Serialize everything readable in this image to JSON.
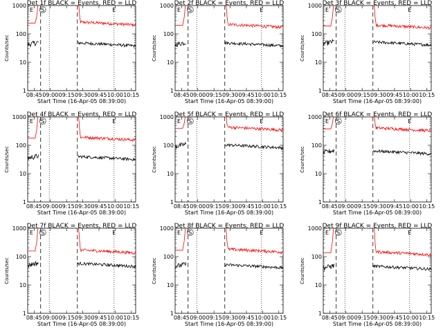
{
  "chart_data": [
    {
      "type": "line",
      "title": "Det 1f BLACK = Events, RED = LLD",
      "xlabel": "Start Time (16-Apr-05 08:39:00)",
      "ylabel": "Counts/sec",
      "yscale": "log",
      "ylim": [
        1,
        1000
      ],
      "xlim": [
        0,
        100
      ],
      "y_ticks": [
        "1",
        "10",
        "100",
        "1000"
      ],
      "x_ticks": [
        "08:45",
        "09:00",
        "09:15",
        "09:30",
        "09:45",
        "10:00",
        "10:15"
      ],
      "x_tick_values": [
        6,
        21,
        36,
        51,
        66,
        81,
        96
      ],
      "markers": {
        "S": 12,
        "E": 80
      },
      "dashed_lines": [
        12,
        46
      ],
      "dotted_lines": [
        20,
        80
      ],
      "series": [
        {
          "color": "#ff0000",
          "level": 230,
          "gap_start": 12,
          "gap_end": 46
        },
        {
          "color": "#000000",
          "level": 42,
          "gap_start": 12,
          "gap_end": 46
        }
      ]
    },
    {
      "type": "line",
      "title": "Det 2f BLACK = Events, RED = LLD",
      "xlabel": "Start Time (16-Apr-05 08:39:00)",
      "ylabel": "Counts/sec",
      "yscale": "log",
      "ylim": [
        1,
        1000
      ],
      "xlim": [
        0,
        100
      ],
      "y_ticks": [
        "1",
        "10",
        "100",
        "1000"
      ],
      "x_ticks": [
        "08:45",
        "09:00",
        "09:15",
        "09:30",
        "09:45",
        "10:00",
        "10:15"
      ],
      "x_tick_values": [
        6,
        21,
        36,
        51,
        66,
        81,
        96
      ],
      "markers": {
        "S": 12,
        "E": 80
      },
      "dashed_lines": [
        12,
        46
      ],
      "dotted_lines": [
        20,
        80
      ],
      "series": [
        {
          "color": "#ff0000",
          "level": 190,
          "gap_start": 12,
          "gap_end": 46
        },
        {
          "color": "#000000",
          "level": 42,
          "gap_start": 12,
          "gap_end": 46
        }
      ]
    },
    {
      "type": "line",
      "title": "Det 3f BLACK = Events, RED = LLD",
      "xlabel": "Start Time (16-Apr-05 08:39:00)",
      "ylabel": "Counts/sec",
      "yscale": "log",
      "ylim": [
        1,
        1000
      ],
      "xlim": [
        0,
        100
      ],
      "y_ticks": [
        "1",
        "10",
        "100",
        "1000"
      ],
      "x_ticks": [
        "08:45",
        "09:00",
        "09:15",
        "09:30",
        "09:45",
        "10:00",
        "10:15"
      ],
      "x_tick_values": [
        6,
        21,
        36,
        51,
        66,
        81,
        96
      ],
      "markers": {
        "S": 12,
        "E": 80
      },
      "dashed_lines": [
        12,
        46
      ],
      "dotted_lines": [
        20,
        80
      ],
      "series": [
        {
          "color": "#ff0000",
          "level": 180,
          "gap_start": 12,
          "gap_end": 46
        },
        {
          "color": "#000000",
          "level": 45,
          "gap_start": 12,
          "gap_end": 46
        }
      ]
    },
    {
      "type": "line",
      "title": "Det 4f BLACK = Events, RED = LLD",
      "xlabel": "Start Time (16-Apr-05 08:39:00)",
      "ylabel": "Counts/sec",
      "yscale": "log",
      "ylim": [
        1,
        1000
      ],
      "xlim": [
        0,
        100
      ],
      "y_ticks": [
        "1",
        "10",
        "100",
        "1000"
      ],
      "x_ticks": [
        "08:45",
        "09:00",
        "09:15",
        "09:30",
        "09:45",
        "10:00",
        "10:15"
      ],
      "x_tick_values": [
        6,
        21,
        36,
        51,
        66,
        81,
        96
      ],
      "markers": {
        "S": 12,
        "E": 80
      },
      "dashed_lines": [
        12,
        46
      ],
      "dotted_lines": [
        20,
        80
      ],
      "series": [
        {
          "color": "#ff0000",
          "level": 170,
          "gap_start": 12,
          "gap_end": 46
        },
        {
          "color": "#000000",
          "level": 35,
          "gap_start": 12,
          "gap_end": 46
        }
      ]
    },
    {
      "type": "line",
      "title": "Det 5f BLACK = Events, RED = LLD",
      "xlabel": "Start Time (16-Apr-05 08:39:00)",
      "ylabel": "Counts/sec",
      "yscale": "log",
      "ylim": [
        1,
        1000
      ],
      "xlim": [
        0,
        100
      ],
      "y_ticks": [
        "1",
        "10",
        "100",
        "1000"
      ],
      "x_ticks": [
        "08:45",
        "09:00",
        "09:15",
        "09:30",
        "09:45",
        "10:00",
        "10:15"
      ],
      "x_tick_values": [
        6,
        21,
        36,
        51,
        66,
        81,
        96
      ],
      "markers": {
        "S": 12,
        "E": 80
      },
      "dashed_lines": [
        12,
        46
      ],
      "dotted_lines": [
        20,
        80
      ],
      "series": [
        {
          "color": "#ff0000",
          "level": 380,
          "gap_start": 12,
          "gap_end": 46
        },
        {
          "color": "#000000",
          "level": 90,
          "gap_start": 12,
          "gap_end": 46
        }
      ]
    },
    {
      "type": "line",
      "title": "Det 6f BLACK = Events, RED = LLD",
      "xlabel": "Start Time (16-Apr-05 08:39:00)",
      "ylabel": "Counts/sec",
      "yscale": "log",
      "ylim": [
        1,
        1000
      ],
      "xlim": [
        0,
        100
      ],
      "y_ticks": [
        "1",
        "10",
        "100",
        "1000"
      ],
      "x_ticks": [
        "08:45",
        "09:00",
        "09:15",
        "09:30",
        "09:45",
        "10:00",
        "10:15"
      ],
      "x_tick_values": [
        6,
        21,
        36,
        51,
        66,
        81,
        96
      ],
      "markers": {
        "S": 12,
        "E": 80
      },
      "dashed_lines": [
        12,
        46
      ],
      "dotted_lines": [
        20,
        80
      ],
      "series": [
        {
          "color": "#ff0000",
          "level": 360,
          "gap_start": 12,
          "gap_end": 46
        },
        {
          "color": "#000000",
          "level": 55,
          "gap_start": 12,
          "gap_end": 46
        }
      ]
    },
    {
      "type": "line",
      "title": "Det 7f BLACK = Events, RED = LLD",
      "xlabel": "Start Time (16-Apr-05 08:39:00)",
      "ylabel": "Counts/sec",
      "yscale": "log",
      "ylim": [
        1,
        1000
      ],
      "xlim": [
        0,
        100
      ],
      "y_ticks": [
        "1",
        "10",
        "100",
        "1000"
      ],
      "x_ticks": [
        "08:45",
        "09:00",
        "09:15",
        "09:30",
        "09:45",
        "10:00",
        "10:15"
      ],
      "x_tick_values": [
        6,
        21,
        36,
        51,
        66,
        81,
        96
      ],
      "markers": {
        "S": 12,
        "E": 80
      },
      "dashed_lines": [
        12,
        46
      ],
      "dotted_lines": [
        20,
        80
      ],
      "series": [
        {
          "color": "#ff0000",
          "level": 150,
          "gap_start": 12,
          "gap_end": 46
        },
        {
          "color": "#000000",
          "level": 50,
          "gap_start": 12,
          "gap_end": 46
        }
      ]
    },
    {
      "type": "line",
      "title": "Det 8f BLACK = Events, RED = LLD",
      "xlabel": "Start Time (16-Apr-05 08:39:00)",
      "ylabel": "Counts/sec",
      "yscale": "log",
      "ylim": [
        1,
        1000
      ],
      "xlim": [
        0,
        100
      ],
      "y_ticks": [
        "1",
        "10",
        "100",
        "1000"
      ],
      "x_ticks": [
        "08:45",
        "09:00",
        "09:15",
        "09:30",
        "09:45",
        "10:00",
        "10:15"
      ],
      "x_tick_values": [
        6,
        21,
        36,
        51,
        66,
        81,
        96
      ],
      "markers": {
        "S": 12,
        "E": 80
      },
      "dashed_lines": [
        12,
        46
      ],
      "dotted_lines": [
        20,
        80
      ],
      "series": [
        {
          "color": "#ff0000",
          "level": 160,
          "gap_start": 12,
          "gap_end": 46
        },
        {
          "color": "#000000",
          "level": 45,
          "gap_start": 12,
          "gap_end": 46
        }
      ]
    },
    {
      "type": "line",
      "title": "Det 9f BLACK = Events, RED = LLD",
      "xlabel": "Start Time (16-Apr-05 08:39:00)",
      "ylabel": "Counts/sec",
      "yscale": "log",
      "ylim": [
        1,
        1000
      ],
      "xlim": [
        0,
        100
      ],
      "y_ticks": [
        "1",
        "10",
        "100",
        "1000"
      ],
      "x_ticks": [
        "08:45",
        "09:00",
        "09:15",
        "09:30",
        "09:45",
        "10:00",
        "10:15"
      ],
      "x_tick_values": [
        6,
        21,
        36,
        51,
        66,
        81,
        96
      ],
      "markers": {
        "S": 12,
        "E": 80
      },
      "dashed_lines": [
        12,
        46
      ],
      "dotted_lines": [
        20,
        80
      ],
      "series": [
        {
          "color": "#ff0000",
          "level": 130,
          "gap_start": 12,
          "gap_end": 46
        },
        {
          "color": "#000000",
          "level": 40,
          "gap_start": 12,
          "gap_end": 46
        }
      ]
    }
  ]
}
